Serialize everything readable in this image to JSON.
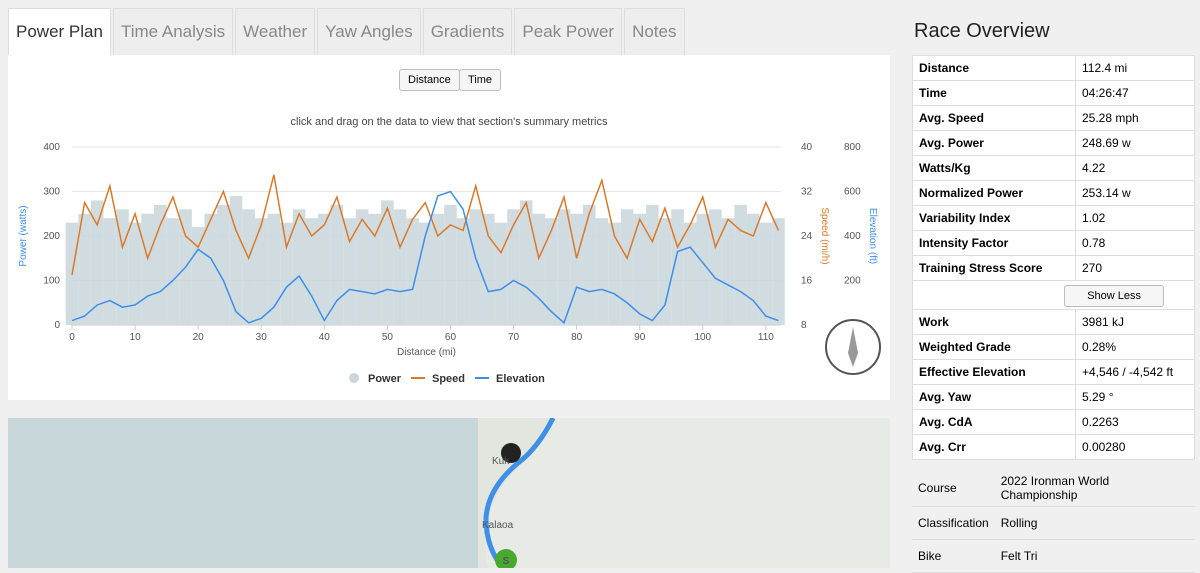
{
  "tabs": [
    "Power Plan",
    "Time Analysis",
    "Weather",
    "Yaw Angles",
    "Gradients",
    "Peak Power",
    "Notes"
  ],
  "buttons": [
    "Distance",
    "Time"
  ],
  "hint": "click and drag on the data to view that section's summary metrics",
  "chart_data": {
    "type": "combo",
    "xlabel": "Distance (mi)",
    "ylabel": "Power (watts)",
    "y2label": "Speed (mi/h)",
    "y3label": "Elevation (ft)",
    "xlim": [
      0,
      112.4
    ],
    "xticks": [
      0,
      10,
      20,
      30,
      40,
      50,
      60,
      70,
      80,
      90,
      100,
      110
    ],
    "ylim": [
      0,
      400
    ],
    "yticks": [
      0,
      100,
      200,
      300,
      400
    ],
    "y2lim": [
      8,
      40
    ],
    "y2ticks": [
      8,
      16,
      24,
      32,
      40
    ],
    "y3lim": [
      0,
      800
    ],
    "y3ticks": [
      0,
      200,
      400,
      600,
      800
    ],
    "x": [
      0,
      2,
      4,
      6,
      8,
      10,
      12,
      14,
      16,
      18,
      20,
      22,
      24,
      26,
      28,
      30,
      32,
      34,
      36,
      38,
      40,
      42,
      44,
      46,
      48,
      50,
      52,
      54,
      56,
      58,
      60,
      62,
      64,
      66,
      68,
      70,
      72,
      74,
      76,
      78,
      80,
      82,
      84,
      86,
      88,
      90,
      92,
      94,
      96,
      98,
      100,
      102,
      104,
      106,
      108,
      110,
      112
    ],
    "series": [
      {
        "name": "Power",
        "color": "#c9d6dc",
        "axis": "y",
        "kind": "bar",
        "values": [
          230,
          250,
          280,
          240,
          260,
          230,
          250,
          270,
          240,
          260,
          220,
          250,
          270,
          290,
          260,
          240,
          250,
          230,
          260,
          240,
          250,
          270,
          240,
          260,
          250,
          280,
          260,
          240,
          230,
          250,
          270,
          240,
          260,
          250,
          230,
          260,
          280,
          250,
          240,
          260,
          250,
          270,
          240,
          230,
          260,
          250,
          270,
          240,
          260,
          230,
          250,
          260,
          240,
          270,
          250,
          230,
          240
        ]
      },
      {
        "name": "Speed",
        "color": "#d97a2b",
        "axis": "y2",
        "kind": "line",
        "values": [
          17,
          30,
          26,
          33,
          22,
          28,
          20,
          26,
          31,
          24,
          22,
          27,
          32,
          25,
          20,
          26,
          35,
          22,
          28,
          24,
          26,
          31,
          23,
          27,
          24,
          29,
          22,
          27,
          30,
          24,
          26,
          25,
          33,
          24,
          21,
          26,
          30,
          20,
          25,
          31,
          20,
          28,
          34,
          24,
          20,
          27,
          23,
          29,
          22,
          26,
          31,
          22,
          27,
          25,
          24,
          30,
          25
        ]
      },
      {
        "name": "Elevation",
        "color": "#3d8fe8",
        "axis": "y3",
        "kind": "line",
        "values": [
          20,
          40,
          90,
          110,
          80,
          90,
          130,
          150,
          200,
          260,
          340,
          300,
          200,
          60,
          10,
          30,
          80,
          170,
          220,
          130,
          20,
          110,
          160,
          150,
          140,
          160,
          150,
          160,
          400,
          580,
          600,
          520,
          300,
          150,
          160,
          200,
          170,
          120,
          60,
          10,
          170,
          150,
          160,
          140,
          100,
          50,
          20,
          90,
          330,
          350,
          280,
          210,
          180,
          150,
          110,
          40,
          20
        ]
      }
    ]
  },
  "overview": {
    "title": "Race Overview",
    "rows": [
      [
        "Distance",
        "112.4 mi"
      ],
      [
        "Time",
        "04:26:47"
      ],
      [
        "Avg. Speed",
        "25.28 mph"
      ],
      [
        "Avg. Power",
        "248.69 w"
      ],
      [
        "Watts/Kg",
        "4.22"
      ],
      [
        "Normalized Power",
        "253.14 w"
      ],
      [
        "Variability Index",
        "1.02"
      ],
      [
        "Intensity Factor",
        "0.78"
      ],
      [
        "Training Stress Score",
        "270"
      ]
    ],
    "button": "Show Less",
    "more": [
      [
        "Work",
        "3981 kJ"
      ],
      [
        "Weighted Grade",
        "0.28%"
      ],
      [
        "Effective Elevation",
        "+4,546 / -4,542 ft"
      ],
      [
        "Avg. Yaw",
        "5.29 °"
      ],
      [
        "Avg. CdA",
        "0.2263"
      ],
      [
        "Avg. Crr",
        "0.00280"
      ]
    ],
    "details": [
      [
        "Course",
        "2022 Ironman World Championship"
      ],
      [
        "Classification",
        "Rolling"
      ],
      [
        "Bike",
        "Felt Tri"
      ]
    ]
  },
  "map": {
    "labels": [
      "Kuk",
      "Kalaoa",
      "S"
    ]
  }
}
